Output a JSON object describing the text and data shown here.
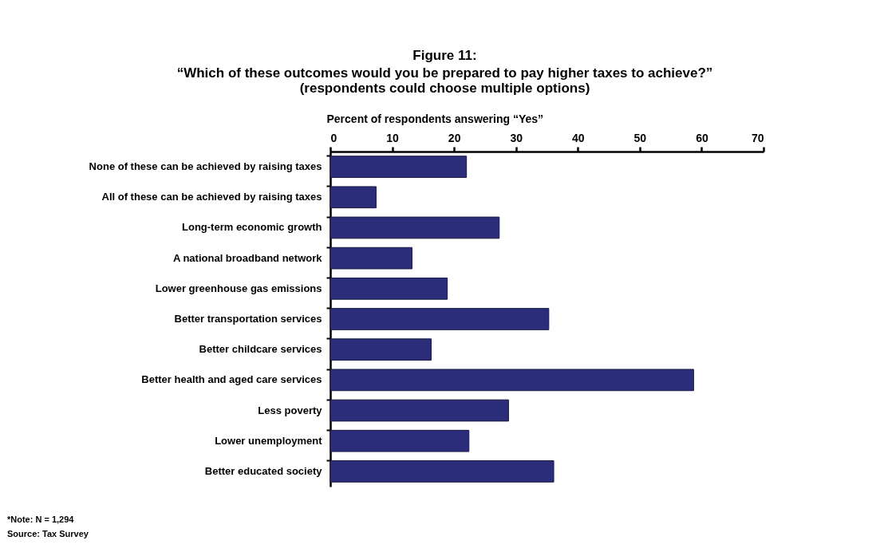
{
  "chart_data": {
    "type": "bar",
    "orientation": "horizontal",
    "title": "Figure 11:\n“Which of these outcomes would you be prepared to pay higher taxes to achieve?”",
    "subtitle": "(respondents could choose multiple options)",
    "xlabel": "Percent of respondents answering “Yes”",
    "categories": [
      "None of these can be achieved by raising taxes",
      "All of these can be achieved by raising taxes",
      "Long-term economic growth",
      "A national broadband network",
      "Lower greenhouse gas emissions",
      "Better transportation services",
      "Better childcare services",
      "Better health and aged care services",
      "Less poverty",
      "Lower unemployment",
      "Better educated society"
    ],
    "values": [
      22.0,
      7.4,
      27.3,
      13.2,
      18.9,
      35.3,
      16.3,
      58.7,
      28.8,
      22.4,
      36.1
    ],
    "color": "#2b2d78",
    "xlim": [
      0,
      70
    ],
    "xticks": [
      0,
      10,
      20,
      30,
      40,
      50,
      60,
      70
    ],
    "grid": false,
    "annotations": [
      "*Note: N = 1,294",
      "Source: Tax Survey"
    ]
  }
}
